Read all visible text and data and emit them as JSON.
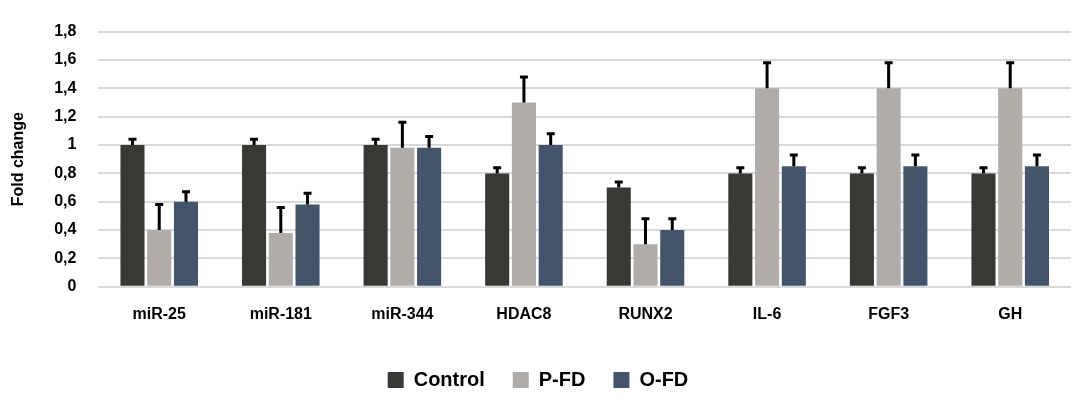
{
  "chart_data": {
    "type": "bar",
    "ylabel": "Fold change",
    "categories": [
      "miR-25",
      "miR-181",
      "miR-344",
      "HDAC8",
      "RUNX2",
      "IL-6",
      "FGF3",
      "GH"
    ],
    "series": [
      {
        "name": "Control",
        "color": "#3a3835",
        "values": [
          1,
          1,
          1,
          0.8,
          0.7,
          0.8,
          0.8,
          0.8
        ],
        "errors": [
          [
            1,
            1.04
          ],
          [
            1,
            1.04
          ],
          [
            1,
            1.04
          ],
          [
            0.8,
            0.84
          ],
          [
            0.7,
            0.74
          ],
          [
            0.8,
            0.84
          ],
          [
            0.8,
            0.84
          ],
          [
            0.8,
            0.84
          ]
        ]
      },
      {
        "name": "P-FD",
        "color": "#b0acaa",
        "values": [
          0.4,
          0.38,
          0.98,
          1.3,
          0.3,
          1.4,
          1.4,
          1.4
        ],
        "errors": [
          [
            0.4,
            0.58
          ],
          [
            0.38,
            0.56
          ],
          [
            0.98,
            1.16
          ],
          [
            1.3,
            1.48
          ],
          [
            0.3,
            0.48
          ],
          [
            1.4,
            1.58
          ],
          [
            1.4,
            1.58
          ],
          [
            1.4,
            1.58
          ]
        ]
      },
      {
        "name": "O-FD",
        "color": "#44546a",
        "values": [
          0.6,
          0.58,
          0.98,
          1,
          0.4,
          0.85,
          0.85,
          0.85
        ],
        "errors": [
          [
            0.6,
            0.67
          ],
          [
            0.58,
            0.66
          ],
          [
            0.98,
            1.06
          ],
          [
            1,
            1.08
          ],
          [
            0.4,
            0.48
          ],
          [
            0.85,
            0.93
          ],
          [
            0.85,
            0.93
          ],
          [
            0.85,
            0.93
          ]
        ]
      }
    ],
    "ylim": [
      0,
      1.8
    ],
    "yticks": [
      {
        "value": 0,
        "label": "0"
      },
      {
        "value": 0.2,
        "label": "0,2"
      },
      {
        "value": 0.4,
        "label": "0,4"
      },
      {
        "value": 0.6,
        "label": "0,6"
      },
      {
        "value": 0.8,
        "label": "0,8"
      },
      {
        "value": 1,
        "label": "1"
      },
      {
        "value": 1.2,
        "label": "1,2"
      },
      {
        "value": 1.4,
        "label": "1,4"
      },
      {
        "value": 1.6,
        "label": "1,6"
      },
      {
        "value": 1.8,
        "label": "1,8"
      }
    ],
    "grid": "y",
    "legend": "bottom"
  }
}
